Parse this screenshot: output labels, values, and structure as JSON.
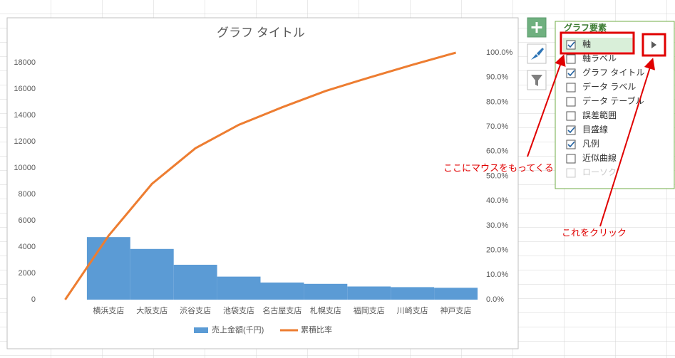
{
  "chart_data": {
    "type": "bar",
    "title": "グラフ タイトル",
    "categories": [
      null,
      "横浜支店",
      "大阪支店",
      "渋谷支店",
      "池袋支店",
      "名古屋支店",
      "札幌支店",
      "福岡支店",
      "川崎支店",
      "神戸支店"
    ],
    "series": [
      {
        "name": "売上金額(千円)",
        "color": "#5b9bd5",
        "values": [
          null,
          4750,
          3850,
          2650,
          1750,
          1300,
          1200,
          1000,
          950,
          900
        ]
      },
      {
        "name": "累積比率",
        "color": "#ed7d31",
        "type": "line",
        "axis": "y2",
        "values": [
          0,
          25.9,
          46.9,
          61.3,
          70.8,
          77.9,
          84.5,
          89.9,
          95.1,
          100
        ]
      }
    ],
    "ylim": [
      0,
      18760
    ],
    "yticks": [
      0,
      2000,
      4000,
      6000,
      8000,
      10000,
      12000,
      14000,
      16000,
      18000
    ],
    "y2lim": [
      0,
      100
    ],
    "y2ticks": [
      {
        "value": 0,
        "label": "0.0%"
      },
      {
        "value": 10,
        "label": "10.0%"
      },
      {
        "value": 20,
        "label": "20.0%"
      },
      {
        "value": 30,
        "label": "30.0%"
      },
      {
        "value": 40,
        "label": "40.0%"
      },
      {
        "value": 50,
        "label": "50.0%"
      },
      {
        "value": 60,
        "label": "60.0%"
      },
      {
        "value": 70,
        "label": "70.0%"
      },
      {
        "value": 80,
        "label": "80.0%"
      },
      {
        "value": 90,
        "label": "90.0%"
      },
      {
        "value": 100,
        "label": "100.0%"
      }
    ],
    "grid": false,
    "legend": "bottom"
  },
  "panel": {
    "title": "グラフ要素",
    "items": [
      {
        "label": "軸",
        "checked": true
      },
      {
        "label": "軸ラベル",
        "checked": false
      },
      {
        "label": "グラフ タイトル",
        "checked": true
      },
      {
        "label": "データ ラベル",
        "checked": false
      },
      {
        "label": "データ テーブル",
        "checked": false
      },
      {
        "label": "誤差範囲",
        "checked": false
      },
      {
        "label": "目盛線",
        "checked": true
      },
      {
        "label": "凡例",
        "checked": true
      },
      {
        "label": "近似曲線",
        "checked": false
      },
      {
        "label": "ローソク",
        "checked": false,
        "disabled": true
      }
    ]
  },
  "annotations": [
    "ここにマウスをもってくる",
    "これをクリック"
  ]
}
